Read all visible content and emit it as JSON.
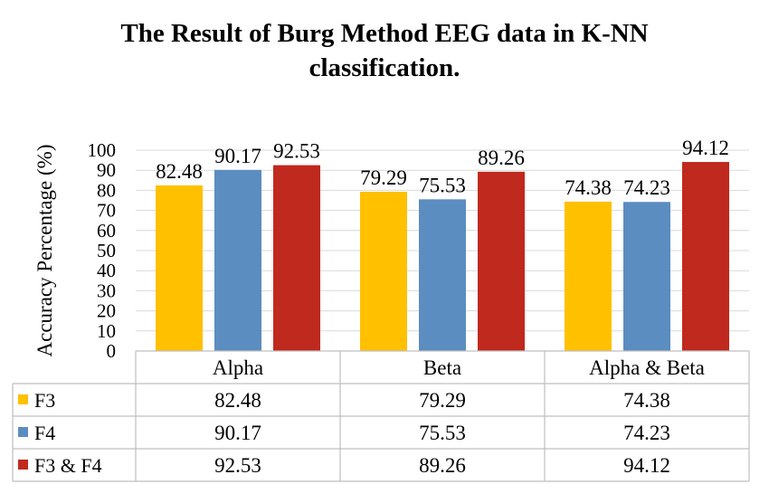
{
  "title_lines": [
    "The Result of Burg Method EEG data in K-NN",
    "classification."
  ],
  "colors": {
    "F3": "#ffc000",
    "F4": "#5b8dc0",
    "F3 & F4": "#c0291d",
    "grid": "#d9d9d9",
    "axis": "#bfbfbf"
  },
  "chart_data": {
    "type": "bar",
    "title": "The Result of Burg Method EEG data in K-NN classification.",
    "ylabel": "Accuracy Percentage (%)",
    "xlabel": "",
    "categories": [
      "Alpha",
      "Beta",
      "Alpha & Beta"
    ],
    "series": [
      {
        "name": "F3",
        "values": [
          82.48,
          79.29,
          74.38
        ]
      },
      {
        "name": "F4",
        "values": [
          90.17,
          75.53,
          74.23
        ]
      },
      {
        "name": "F3 & F4",
        "values": [
          92.53,
          89.26,
          94.12
        ]
      }
    ],
    "ylim": [
      0,
      100
    ],
    "yticks": [
      0,
      10,
      20,
      30,
      40,
      50,
      60,
      70,
      80,
      90,
      100
    ],
    "grid": true,
    "data_labels": true,
    "legend": "data-table below chart"
  }
}
